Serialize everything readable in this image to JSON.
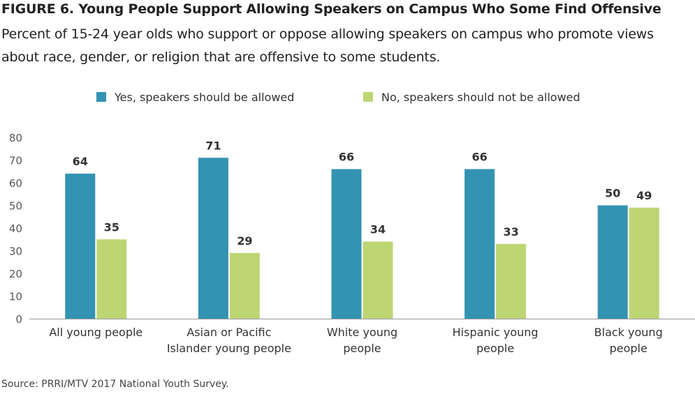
{
  "header": {
    "title": "FIGURE 6. Young People Support Allowing Speakers on Campus Who Some Find Offensive",
    "subtitle": "Percent of 15-24 year olds who support or oppose allowing speakers on campus who promote views about race, gender, or religion that are offensive to some students."
  },
  "footer": {
    "source": "Source: PRRI/MTV 2017 National Youth Survey."
  },
  "chart_data": {
    "type": "bar",
    "title": "FIGURE 6. Young People Support Allowing Speakers on Campus Who Some Find Offensive",
    "subtitle": "Percent of 15-24 year olds who support or oppose allowing speakers on campus who promote views about race, gender, or religion that are offensive to some students.",
    "categories": [
      [
        "All young people"
      ],
      [
        "Asian or Pacific",
        "Islander young people"
      ],
      [
        "White young",
        "people"
      ],
      [
        "Hispanic young",
        "people"
      ],
      [
        "Black young",
        "people"
      ]
    ],
    "series": [
      {
        "name": "Yes, speakers should be allowed",
        "color": "#3393b2",
        "values": [
          64,
          71,
          66,
          66,
          50
        ]
      },
      {
        "name": "No, speakers should not be allowed",
        "color": "#bed574",
        "values": [
          35,
          29,
          34,
          33,
          49
        ]
      }
    ],
    "yticks": [
      0,
      10,
      20,
      30,
      40,
      50,
      60,
      70,
      80
    ],
    "ylim": [
      0,
      80
    ],
    "xlabel": "",
    "ylabel": "",
    "grid": false,
    "legend_position": "top-center"
  }
}
